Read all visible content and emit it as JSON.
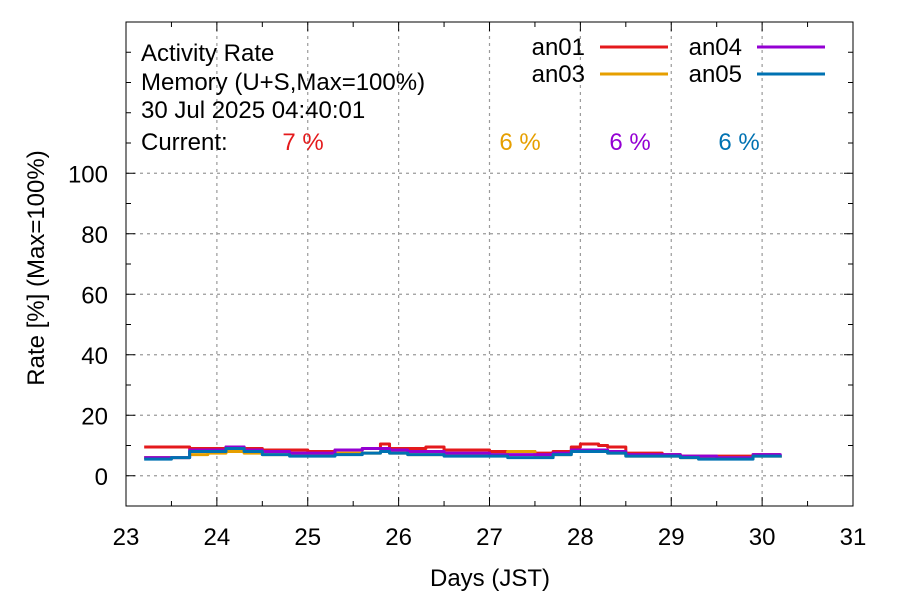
{
  "chart_data": {
    "type": "line",
    "title_lines": [
      "Activity Rate",
      "Memory (U+S,Max=100%)",
      "30 Jul 2025 04:40:01"
    ],
    "current_label": "Current:",
    "xlabel": "Days (JST)",
    "ylabel": "Rate [%]  (Max=100%)",
    "xlim": [
      23,
      31
    ],
    "ylim": [
      -10,
      150
    ],
    "x_ticks": [
      23,
      24,
      25,
      26,
      27,
      28,
      29,
      30,
      31
    ],
    "y_ticks": [
      0,
      20,
      40,
      60,
      80,
      100
    ],
    "grid": true,
    "legend_position": "top-right",
    "series": [
      {
        "name": "an01",
        "color": "#e41a1c",
        "current": "7 %",
        "x": [
          23.2,
          23.5,
          23.7,
          23.9,
          24.1,
          24.3,
          24.5,
          24.8,
          25.0,
          25.3,
          25.6,
          25.8,
          25.9,
          26.1,
          26.3,
          26.5,
          26.8,
          27.0,
          27.2,
          27.5,
          27.7,
          27.9,
          28.0,
          28.2,
          28.3,
          28.5,
          28.7,
          28.9,
          29.1,
          29.3,
          29.5,
          29.7,
          29.9,
          30.1,
          30.2
        ],
        "y": [
          9.5,
          9.5,
          9.0,
          9.0,
          9.5,
          9.0,
          8.5,
          8.5,
          8.0,
          8.5,
          9.0,
          10.5,
          9.0,
          9.0,
          9.5,
          8.5,
          8.5,
          8.0,
          8.0,
          7.5,
          8.0,
          9.5,
          10.5,
          10.0,
          9.5,
          7.5,
          7.5,
          7.0,
          6.5,
          6.5,
          6.5,
          6.5,
          7.0,
          7.0,
          7.0
        ]
      },
      {
        "name": "an03",
        "color": "#e69f00",
        "current": "6 %",
        "x": [
          23.2,
          23.5,
          23.7,
          23.9,
          24.1,
          24.3,
          24.5,
          24.8,
          25.0,
          25.3,
          25.6,
          25.8,
          25.9,
          26.1,
          26.3,
          26.5,
          26.8,
          27.0,
          27.2,
          27.5,
          27.7,
          27.9,
          28.0,
          28.2,
          28.3,
          28.5,
          28.7,
          28.9,
          29.1,
          29.3,
          29.5,
          29.7,
          29.9,
          30.1,
          30.2
        ],
        "y": [
          6.0,
          6.0,
          7.0,
          7.5,
          8.0,
          7.5,
          7.0,
          7.0,
          7.0,
          7.5,
          7.5,
          8.0,
          7.5,
          7.0,
          7.0,
          7.0,
          7.0,
          7.0,
          8.0,
          6.5,
          7.0,
          8.0,
          8.0,
          8.0,
          7.5,
          6.5,
          6.5,
          6.5,
          6.0,
          6.0,
          6.0,
          6.0,
          6.5,
          6.5,
          6.0
        ]
      },
      {
        "name": "an04",
        "color": "#9400d3",
        "current": "6 %",
        "x": [
          23.2,
          23.5,
          23.7,
          23.9,
          24.1,
          24.3,
          24.5,
          24.8,
          25.0,
          25.3,
          25.6,
          25.8,
          25.9,
          26.1,
          26.3,
          26.5,
          26.8,
          27.0,
          27.2,
          27.5,
          27.7,
          27.9,
          28.0,
          28.2,
          28.3,
          28.5,
          28.7,
          28.9,
          29.1,
          29.3,
          29.5,
          29.7,
          29.9,
          30.1,
          30.2
        ],
        "y": [
          6.0,
          6.0,
          8.5,
          8.5,
          9.5,
          8.5,
          8.0,
          7.5,
          7.5,
          8.5,
          9.0,
          9.0,
          8.5,
          8.0,
          8.0,
          7.5,
          7.5,
          7.0,
          7.0,
          7.0,
          7.5,
          8.5,
          8.5,
          8.5,
          8.0,
          7.0,
          7.0,
          7.0,
          6.5,
          6.5,
          6.0,
          6.0,
          7.0,
          7.0,
          6.5
        ]
      },
      {
        "name": "an05",
        "color": "#0072b2",
        "current": "6 %",
        "x": [
          23.2,
          23.5,
          23.7,
          23.9,
          24.1,
          24.3,
          24.5,
          24.8,
          25.0,
          25.3,
          25.6,
          25.8,
          25.9,
          26.1,
          26.3,
          26.5,
          26.8,
          27.0,
          27.2,
          27.5,
          27.7,
          27.9,
          28.0,
          28.2,
          28.3,
          28.5,
          28.7,
          28.9,
          29.1,
          29.3,
          29.5,
          29.7,
          29.9,
          30.1,
          30.2
        ],
        "y": [
          5.5,
          6.0,
          8.0,
          8.0,
          9.0,
          8.0,
          7.0,
          6.5,
          6.5,
          7.0,
          7.5,
          8.0,
          7.5,
          7.0,
          7.0,
          6.5,
          6.5,
          6.5,
          6.0,
          6.0,
          7.0,
          8.0,
          8.0,
          8.0,
          7.5,
          6.5,
          6.5,
          6.5,
          6.0,
          5.5,
          5.5,
          5.5,
          6.5,
          6.5,
          6.0
        ]
      }
    ]
  }
}
